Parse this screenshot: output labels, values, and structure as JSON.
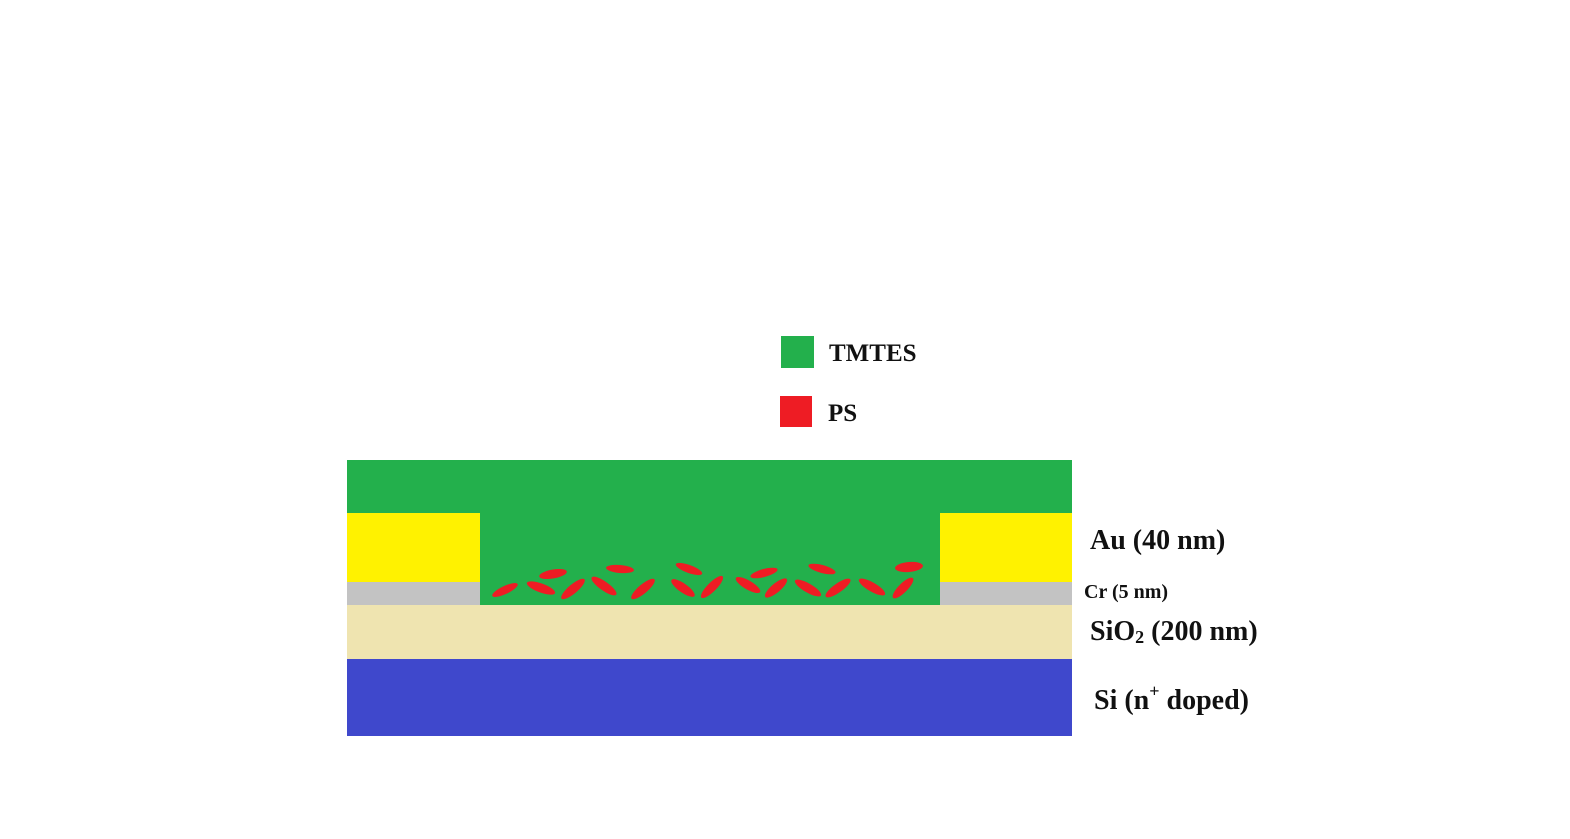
{
  "legend": [
    {
      "label": "TMTES",
      "color": "#23b04c"
    },
    {
      "label": "PS",
      "color": "#ee1c24"
    }
  ],
  "layers": {
    "au": {
      "prefix": "Au (40 nm)",
      "color": "#fff200"
    },
    "cr": {
      "prefix": "Cr (5 nm)",
      "color": "#c3c3c3"
    },
    "sio2": {
      "prefix": "SiO",
      "sub": "2",
      "suffix": " (200 nm)",
      "color": "#efe4b0"
    },
    "si": {
      "prefix": "Si (n",
      "sup": "+",
      "suffix": " doped)",
      "color": "#3f48cc"
    },
    "tmtes": {
      "color": "#23b04c"
    },
    "ps": {
      "color": "#ee1c24"
    }
  }
}
